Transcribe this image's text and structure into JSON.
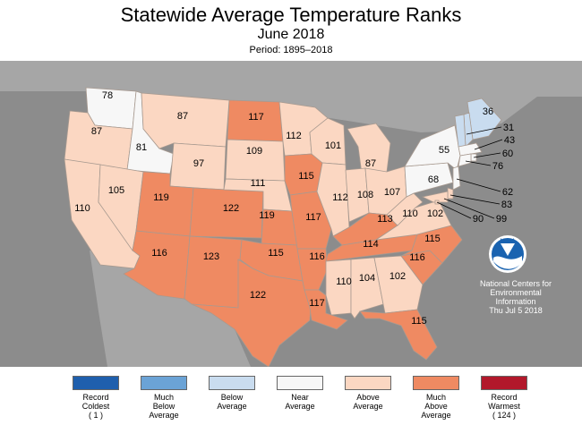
{
  "title": "Statewide Average Temperature Ranks",
  "subtitle": "June 2018",
  "period": "Period: 1895–2018",
  "colors": {
    "background": "#8c8c8c",
    "record_coldest": "#1f5fad",
    "much_below": "#6ba3d6",
    "below": "#c9dcef",
    "near": "#f7f7f7",
    "above": "#fbd7c2",
    "much_above": "#ef8a62",
    "record_warmest": "#b2182b"
  },
  "states": [
    {
      "id": "WA",
      "rank": "78",
      "category": "near"
    },
    {
      "id": "OR",
      "rank": "87",
      "category": "above"
    },
    {
      "id": "CA",
      "rank": "110",
      "category": "above"
    },
    {
      "id": "ID",
      "rank": "81",
      "category": "near"
    },
    {
      "id": "NV",
      "rank": "105",
      "category": "above"
    },
    {
      "id": "MT",
      "rank": "87",
      "category": "above"
    },
    {
      "id": "WY",
      "rank": "97",
      "category": "above"
    },
    {
      "id": "UT",
      "rank": "119",
      "category": "much_above"
    },
    {
      "id": "AZ",
      "rank": "116",
      "category": "much_above"
    },
    {
      "id": "CO",
      "rank": "122",
      "category": "much_above"
    },
    {
      "id": "NM",
      "rank": "123",
      "category": "much_above"
    },
    {
      "id": "ND",
      "rank": "117",
      "category": "much_above"
    },
    {
      "id": "SD",
      "rank": "109",
      "category": "above"
    },
    {
      "id": "NE",
      "rank": "111",
      "category": "above"
    },
    {
      "id": "KS",
      "rank": "119",
      "category": "much_above"
    },
    {
      "id": "OK",
      "rank": "115",
      "category": "much_above"
    },
    {
      "id": "TX",
      "rank": "122",
      "category": "much_above"
    },
    {
      "id": "MN",
      "rank": "112",
      "category": "above"
    },
    {
      "id": "IA",
      "rank": "115",
      "category": "much_above"
    },
    {
      "id": "MO",
      "rank": "117",
      "category": "much_above"
    },
    {
      "id": "AR",
      "rank": "116",
      "category": "much_above"
    },
    {
      "id": "LA",
      "rank": "117",
      "category": "much_above"
    },
    {
      "id": "WI",
      "rank": "101",
      "category": "above"
    },
    {
      "id": "IL",
      "rank": "112",
      "category": "above"
    },
    {
      "id": "MI",
      "rank": "87",
      "category": "above"
    },
    {
      "id": "IN",
      "rank": "108",
      "category": "above"
    },
    {
      "id": "OH",
      "rank": "107",
      "category": "above"
    },
    {
      "id": "KY",
      "rank": "113",
      "category": "much_above"
    },
    {
      "id": "TN",
      "rank": "114",
      "category": "much_above"
    },
    {
      "id": "MS",
      "rank": "110",
      "category": "above"
    },
    {
      "id": "AL",
      "rank": "104",
      "category": "above"
    },
    {
      "id": "GA",
      "rank": "102",
      "category": "above"
    },
    {
      "id": "FL",
      "rank": "115",
      "category": "much_above"
    },
    {
      "id": "SC",
      "rank": "116",
      "category": "much_above"
    },
    {
      "id": "NC",
      "rank": "115",
      "category": "much_above"
    },
    {
      "id": "VA",
      "rank": "110",
      "category": "above"
    },
    {
      "id": "WV",
      "rank": "102",
      "category": "above"
    },
    {
      "id": "PA",
      "rank": "68",
      "category": "near"
    },
    {
      "id": "NY",
      "rank": "55",
      "category": "near"
    },
    {
      "id": "ME",
      "rank": "36",
      "category": "below"
    },
    {
      "id": "NH",
      "rank": "31",
      "category": "below"
    },
    {
      "id": "VT",
      "rank": "",
      "category": "below"
    },
    {
      "id": "MA",
      "rank": "43",
      "category": "near"
    },
    {
      "id": "RI",
      "rank": "60",
      "category": "near"
    },
    {
      "id": "CT",
      "rank": "76",
      "category": "near"
    },
    {
      "id": "NJ",
      "rank": "62",
      "category": "near"
    },
    {
      "id": "DE",
      "rank": "83",
      "category": "above"
    },
    {
      "id": "MD",
      "rank": "99",
      "category": "above"
    },
    {
      "id": "DC",
      "rank": "90",
      "category": "above"
    }
  ],
  "logo_text": "NOAA",
  "credit": {
    "line1": "National Centers for",
    "line2": "Environmental",
    "line3": "Information",
    "date": "Thu Jul  5 2018"
  },
  "legend": [
    {
      "key": "record_coldest",
      "line1": "Record",
      "line2": "Coldest",
      "line3": "( 1 )"
    },
    {
      "key": "much_below",
      "line1": "Much",
      "line2": "Below",
      "line3": "Average"
    },
    {
      "key": "below",
      "line1": "Below",
      "line2": "Average",
      "line3": ""
    },
    {
      "key": "near",
      "line1": "Near",
      "line2": "Average",
      "line3": ""
    },
    {
      "key": "above",
      "line1": "Above",
      "line2": "Average",
      "line3": ""
    },
    {
      "key": "much_above",
      "line1": "Much",
      "line2": "Above",
      "line3": "Average"
    },
    {
      "key": "record_warmest",
      "line1": "Record",
      "line2": "Warmest",
      "line3": "( 124 )"
    }
  ]
}
